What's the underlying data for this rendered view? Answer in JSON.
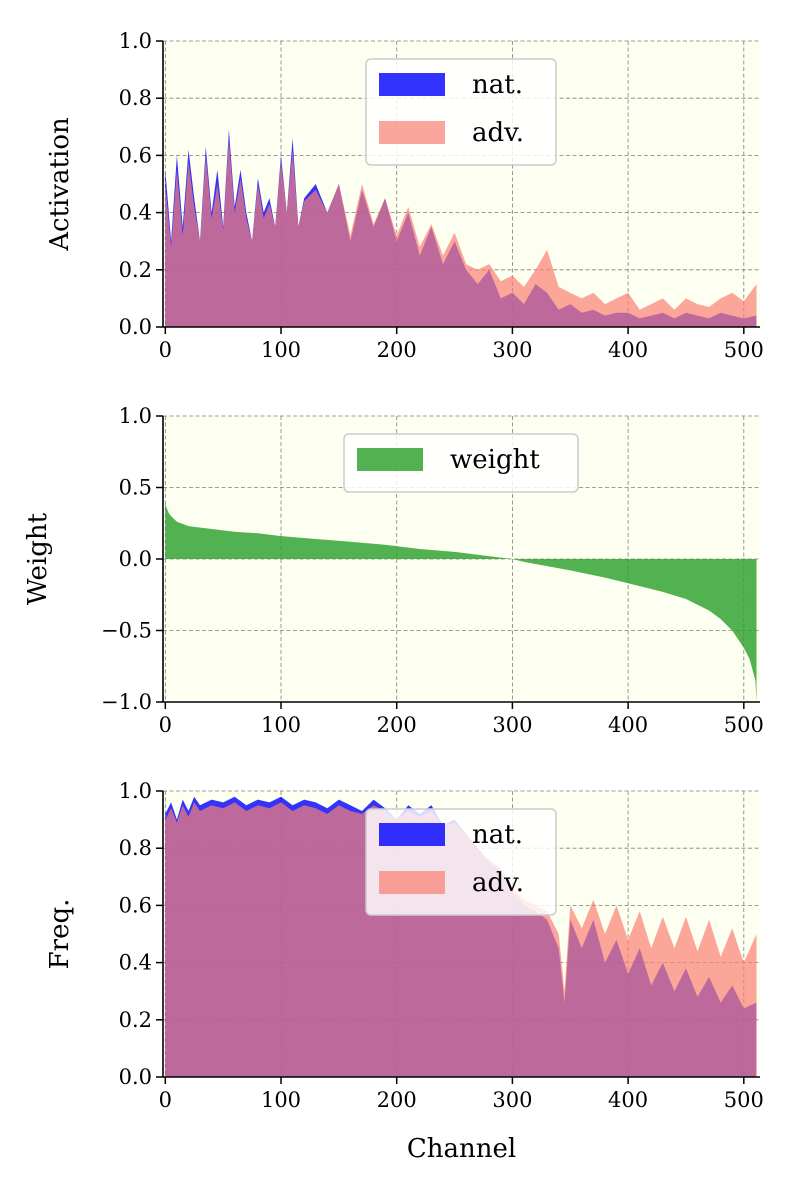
{
  "chart_data": [
    {
      "type": "area",
      "ylabel": "Activation",
      "xlabel": "",
      "xlim": [
        -2,
        514
      ],
      "ylim": [
        0.0,
        1.0
      ],
      "xticks": [
        "0",
        "100",
        "200",
        "300",
        "400",
        "500"
      ],
      "yticks": [
        "0.0",
        "0.2",
        "0.4",
        "0.6",
        "0.8",
        "1.0"
      ],
      "grid": true,
      "legend_position": "top-center",
      "legend": [
        {
          "label": "nat.",
          "color": "#0000ff"
        },
        {
          "label": "adv.",
          "color": "#fa8072"
        }
      ],
      "series": [
        {
          "name": "nat.",
          "color": "#0000ff",
          "x": [
            0,
            5,
            10,
            15,
            20,
            25,
            30,
            35,
            40,
            45,
            50,
            55,
            60,
            65,
            70,
            75,
            80,
            85,
            90,
            95,
            100,
            105,
            110,
            115,
            120,
            130,
            140,
            150,
            160,
            170,
            180,
            190,
            200,
            210,
            220,
            230,
            240,
            250,
            260,
            270,
            280,
            290,
            300,
            310,
            320,
            330,
            340,
            350,
            360,
            370,
            380,
            390,
            400,
            410,
            420,
            430,
            440,
            450,
            460,
            470,
            480,
            490,
            500,
            511
          ],
          "values": [
            0.55,
            0.3,
            0.6,
            0.35,
            0.62,
            0.45,
            0.3,
            0.63,
            0.4,
            0.55,
            0.35,
            0.69,
            0.42,
            0.55,
            0.4,
            0.3,
            0.52,
            0.4,
            0.45,
            0.35,
            0.6,
            0.4,
            0.66,
            0.35,
            0.45,
            0.5,
            0.4,
            0.5,
            0.3,
            0.48,
            0.35,
            0.45,
            0.3,
            0.4,
            0.25,
            0.35,
            0.22,
            0.3,
            0.2,
            0.15,
            0.2,
            0.1,
            0.12,
            0.08,
            0.15,
            0.12,
            0.06,
            0.08,
            0.05,
            0.06,
            0.04,
            0.05,
            0.05,
            0.03,
            0.04,
            0.05,
            0.03,
            0.05,
            0.04,
            0.03,
            0.05,
            0.04,
            0.03,
            0.04
          ]
        },
        {
          "name": "adv.",
          "color": "#fa8072",
          "x": [
            0,
            5,
            10,
            15,
            20,
            25,
            30,
            35,
            40,
            45,
            50,
            55,
            60,
            65,
            70,
            75,
            80,
            85,
            90,
            95,
            100,
            105,
            110,
            115,
            120,
            130,
            140,
            150,
            160,
            170,
            180,
            190,
            200,
            210,
            220,
            230,
            240,
            250,
            260,
            270,
            280,
            290,
            300,
            310,
            320,
            330,
            340,
            350,
            360,
            370,
            380,
            390,
            400,
            410,
            420,
            430,
            440,
            450,
            460,
            470,
            480,
            490,
            500,
            511
          ],
          "values": [
            0.5,
            0.28,
            0.55,
            0.32,
            0.58,
            0.42,
            0.3,
            0.6,
            0.38,
            0.5,
            0.34,
            0.66,
            0.4,
            0.52,
            0.38,
            0.3,
            0.5,
            0.38,
            0.43,
            0.35,
            0.58,
            0.4,
            0.62,
            0.35,
            0.44,
            0.48,
            0.4,
            0.5,
            0.32,
            0.5,
            0.36,
            0.45,
            0.32,
            0.42,
            0.28,
            0.36,
            0.25,
            0.33,
            0.22,
            0.2,
            0.22,
            0.16,
            0.18,
            0.14,
            0.2,
            0.27,
            0.14,
            0.12,
            0.1,
            0.12,
            0.08,
            0.1,
            0.12,
            0.06,
            0.08,
            0.1,
            0.06,
            0.1,
            0.08,
            0.07,
            0.1,
            0.12,
            0.09,
            0.15
          ]
        }
      ]
    },
    {
      "type": "area",
      "ylabel": "Weight",
      "xlabel": "",
      "xlim": [
        -2,
        514
      ],
      "ylim": [
        -1.0,
        1.0
      ],
      "xticks": [
        "0",
        "100",
        "200",
        "300",
        "400",
        "500"
      ],
      "yticks": [
        "−1.0",
        "−0.5",
        "0.0",
        "0.5",
        "1.0"
      ],
      "grid": true,
      "legend_position": "top-center",
      "legend": [
        {
          "label": "weight",
          "color": "#2ca02c"
        }
      ],
      "series": [
        {
          "name": "weight",
          "color": "#2ca02c",
          "x": [
            0,
            1,
            3,
            5,
            10,
            20,
            40,
            60,
            80,
            100,
            130,
            160,
            190,
            220,
            250,
            270,
            290,
            300,
            310,
            330,
            350,
            380,
            400,
            430,
            450,
            470,
            480,
            490,
            500,
            505,
            510,
            511
          ],
          "values": [
            0.4,
            0.36,
            0.32,
            0.3,
            0.26,
            0.23,
            0.21,
            0.19,
            0.18,
            0.16,
            0.14,
            0.12,
            0.1,
            0.07,
            0.05,
            0.03,
            0.01,
            0.0,
            -0.02,
            -0.05,
            -0.08,
            -0.13,
            -0.17,
            -0.23,
            -0.28,
            -0.36,
            -0.42,
            -0.5,
            -0.62,
            -0.7,
            -0.85,
            -1.0
          ]
        }
      ]
    },
    {
      "type": "area",
      "ylabel": "Freq.",
      "xlabel": "Channel",
      "xlim": [
        -2,
        514
      ],
      "ylim": [
        0.0,
        1.0
      ],
      "xticks": [
        "0",
        "100",
        "200",
        "300",
        "400",
        "500"
      ],
      "yticks": [
        "0.0",
        "0.2",
        "0.4",
        "0.6",
        "0.8",
        "1.0"
      ],
      "grid": true,
      "legend_position": "top-center",
      "legend": [
        {
          "label": "nat.",
          "color": "#0000ff"
        },
        {
          "label": "adv.",
          "color": "#fa8072"
        }
      ],
      "series": [
        {
          "name": "nat.",
          "color": "#0000ff",
          "x": [
            0,
            5,
            10,
            15,
            20,
            25,
            30,
            40,
            50,
            60,
            70,
            80,
            90,
            100,
            110,
            120,
            130,
            140,
            150,
            160,
            170,
            180,
            190,
            200,
            210,
            220,
            230,
            240,
            250,
            260,
            270,
            280,
            290,
            300,
            310,
            320,
            330,
            340,
            345,
            350,
            360,
            370,
            380,
            390,
            400,
            410,
            420,
            430,
            440,
            450,
            460,
            470,
            480,
            490,
            500,
            511
          ],
          "values": [
            0.92,
            0.96,
            0.9,
            0.97,
            0.93,
            0.98,
            0.95,
            0.97,
            0.96,
            0.98,
            0.95,
            0.97,
            0.96,
            0.98,
            0.95,
            0.97,
            0.96,
            0.94,
            0.97,
            0.95,
            0.93,
            0.97,
            0.94,
            0.9,
            0.95,
            0.92,
            0.95,
            0.88,
            0.9,
            0.85,
            0.8,
            0.75,
            0.72,
            0.65,
            0.6,
            0.58,
            0.55,
            0.45,
            0.26,
            0.55,
            0.45,
            0.55,
            0.4,
            0.48,
            0.36,
            0.45,
            0.32,
            0.4,
            0.3,
            0.38,
            0.28,
            0.35,
            0.26,
            0.32,
            0.24,
            0.26
          ]
        },
        {
          "name": "adv.",
          "color": "#fa8072",
          "x": [
            0,
            5,
            10,
            15,
            20,
            25,
            30,
            40,
            50,
            60,
            70,
            80,
            90,
            100,
            110,
            120,
            130,
            140,
            150,
            160,
            170,
            180,
            190,
            200,
            210,
            220,
            230,
            240,
            250,
            260,
            270,
            280,
            290,
            300,
            310,
            320,
            330,
            340,
            345,
            350,
            360,
            370,
            380,
            390,
            400,
            410,
            420,
            430,
            440,
            450,
            460,
            470,
            480,
            490,
            500,
            511
          ],
          "values": [
            0.9,
            0.94,
            0.89,
            0.95,
            0.91,
            0.96,
            0.93,
            0.95,
            0.94,
            0.96,
            0.93,
            0.95,
            0.94,
            0.96,
            0.93,
            0.95,
            0.94,
            0.92,
            0.95,
            0.93,
            0.92,
            0.95,
            0.93,
            0.9,
            0.93,
            0.91,
            0.93,
            0.88,
            0.89,
            0.85,
            0.8,
            0.76,
            0.73,
            0.66,
            0.62,
            0.6,
            0.58,
            0.5,
            0.3,
            0.6,
            0.52,
            0.62,
            0.5,
            0.6,
            0.48,
            0.58,
            0.45,
            0.56,
            0.45,
            0.56,
            0.44,
            0.55,
            0.42,
            0.52,
            0.4,
            0.5
          ]
        }
      ]
    }
  ]
}
